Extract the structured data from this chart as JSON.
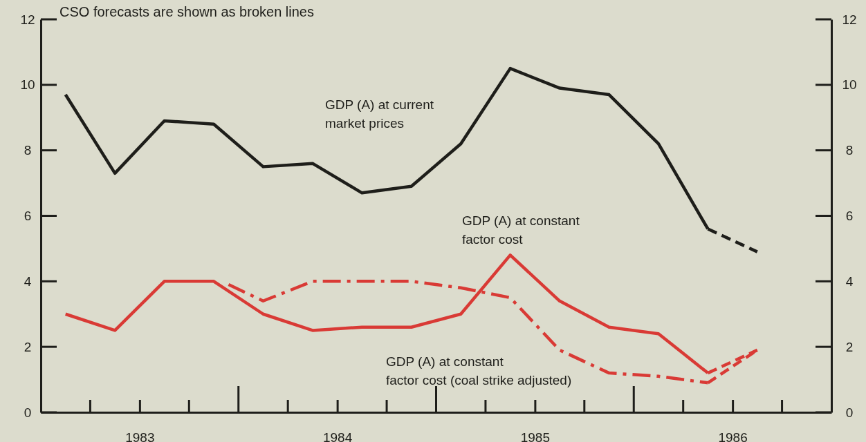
{
  "chart_data": {
    "type": "line",
    "annotations": [
      "CSO forecasts are shown as broken lines"
    ],
    "xlim": [
      1983,
      1987
    ],
    "xticks": [
      {
        "value": 1983.5,
        "label": "1983"
      },
      {
        "value": 1984.5,
        "label": "1984"
      },
      {
        "value": 1985.5,
        "label": "1985"
      },
      {
        "value": 1986.5,
        "label": "1986"
      }
    ],
    "ylim": [
      0,
      12
    ],
    "yticks": [
      0,
      2,
      4,
      6,
      8,
      10,
      12
    ],
    "y2lim": [
      0,
      12
    ],
    "y2ticks": [
      0,
      2,
      4,
      6,
      8,
      10,
      12
    ],
    "grid": false,
    "marker": "none",
    "series": [
      {
        "name": "GDP (A) at current market prices",
        "color": "#1e1e1a",
        "line_style": "solid",
        "x": [
          1983.125,
          1983.375,
          1983.625,
          1983.875,
          1984.125,
          1984.375,
          1984.625,
          1984.875,
          1985.125,
          1985.375,
          1985.625,
          1985.875,
          1986.125,
          1986.375
        ],
        "values": [
          9.7,
          7.3,
          8.9,
          8.8,
          7.5,
          7.6,
          6.7,
          6.9,
          8.2,
          10.5,
          9.9,
          9.7,
          8.2,
          5.6
        ]
      },
      {
        "color": "#1e1e1a",
        "line_style": "dashed",
        "x": [
          1986.375,
          1986.625
        ],
        "values": [
          5.6,
          4.9
        ]
      },
      {
        "name": "GDP (A) at constant factor cost",
        "color": "#d93a35",
        "line_style": "solid",
        "x": [
          1983.125,
          1983.375,
          1983.625,
          1983.875,
          1984.125,
          1984.375,
          1984.625,
          1984.875,
          1985.125,
          1985.375,
          1985.625,
          1985.875,
          1986.125,
          1986.375
        ],
        "values": [
          3.0,
          2.5,
          4.0,
          4.0,
          3.0,
          2.5,
          2.6,
          2.6,
          3.0,
          4.8,
          3.4,
          2.6,
          2.4,
          1.2
        ]
      },
      {
        "color": "#d93a35",
        "line_style": "dashed",
        "x": [
          1986.375,
          1986.625
        ],
        "values": [
          1.2,
          1.9
        ]
      },
      {
        "name": "GDP (A) at constant factor cost (coal strike adjusted)",
        "color": "#d93a35",
        "line_style": "dashdot",
        "x": [
          1983.95,
          1984.125,
          1984.375,
          1984.625,
          1984.875,
          1985.125,
          1985.375,
          1985.625,
          1985.875,
          1986.125,
          1986.375
        ],
        "values": [
          3.9,
          3.4,
          4.0,
          4.0,
          4.0,
          3.8,
          3.5,
          1.9,
          1.2,
          1.1,
          0.9
        ]
      },
      {
        "color": "#d93a35",
        "line_style": "dashed",
        "x": [
          1986.375,
          1986.625
        ],
        "values": [
          0.9,
          1.9
        ]
      }
    ]
  }
}
